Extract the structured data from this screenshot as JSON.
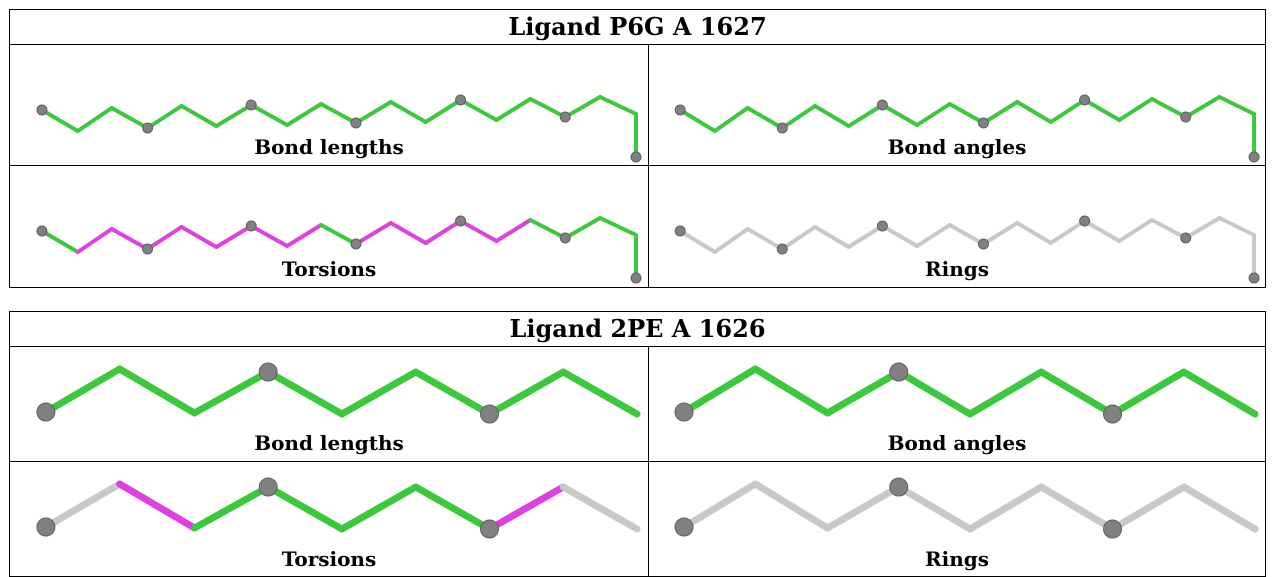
{
  "ligands": [
    {
      "title": "Ligand P6G A 1627",
      "panels": [
        {
          "caption": "Bond lengths",
          "scheme": "all-green"
        },
        {
          "caption": "Bond angles",
          "scheme": "all-green"
        },
        {
          "caption": "Torsions",
          "scheme": "mixed-torsion"
        },
        {
          "caption": "Rings",
          "scheme": "all-grey"
        }
      ]
    },
    {
      "title": "Ligand 2PE A 1626",
      "panels": [
        {
          "caption": "Bond lengths",
          "scheme": "all-green"
        },
        {
          "caption": "Bond angles",
          "scheme": "all-green"
        },
        {
          "caption": "Torsions",
          "scheme": "mixed-torsion"
        },
        {
          "caption": "Rings",
          "scheme": "all-grey"
        }
      ]
    }
  ],
  "colors": {
    "ok_bond": "#3cc83c",
    "outlier_bond": "#e040e0",
    "unassessed_bond": "#c8c8c8",
    "atom": "#808080",
    "border": "#000000"
  }
}
